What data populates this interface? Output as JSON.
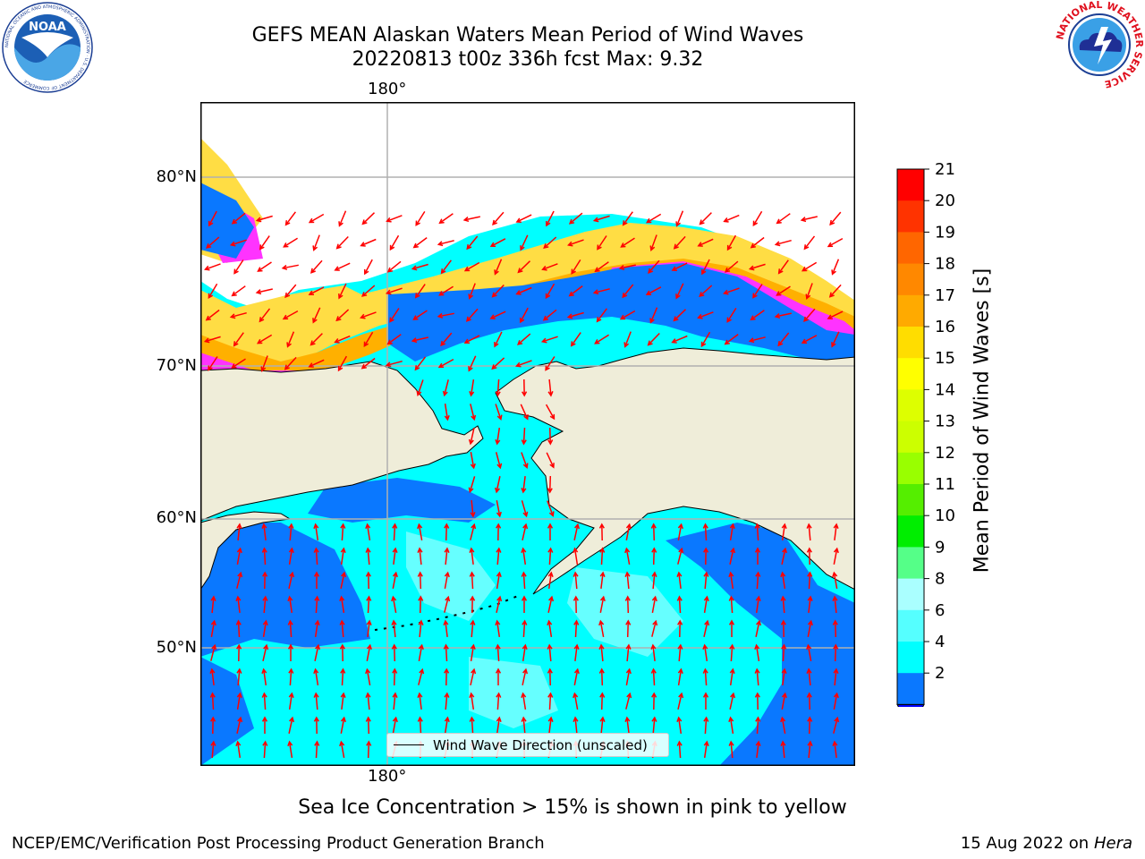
{
  "title": {
    "line1": "GEFS MEAN Alaskan Waters Mean Period of Wind Waves",
    "line2": "20220813 t00z 336h fcst   Max: 9.32"
  },
  "logos": {
    "left": {
      "name": "noaa-logo",
      "text": "NOAA",
      "ring_text": "NATIONAL OCEANIC AND ATMOSPHERIC ADMINISTRATION · U.S. DEPARTMENT OF COMMERCE"
    },
    "right": {
      "name": "nws-logo",
      "ring_text": "NATIONAL WEATHER SERVICE"
    }
  },
  "map": {
    "lon_labels": {
      "top": "180°",
      "bottom": "180°"
    },
    "lat_labels": [
      "80°N",
      "70°N",
      "60°N",
      "50°N"
    ],
    "colors": {
      "land": "#efedd9",
      "wave_low": "#0a78ff",
      "wave_main": "#00ffff",
      "wave_light": "#66ffff",
      "ice_pink": "#ff33ff",
      "ice_orange": "#ffb000",
      "ice_yellow": "#ffdd44",
      "arrow": "#ff0000",
      "grid": "#b0b0b0"
    },
    "legend_label": "Wind Wave Direction (unscaled)"
  },
  "colorbar": {
    "label": "Mean Period of Wind Waves [s]",
    "ticks": [
      "21",
      "20",
      "19",
      "18",
      "17",
      "16",
      "15",
      "14",
      "13",
      "12",
      "11",
      "10",
      "9",
      "8",
      "6",
      "4",
      "2"
    ],
    "colors": [
      "#ff0000",
      "#ff3300",
      "#ff6600",
      "#ff8800",
      "#ffaa00",
      "#ffdd00",
      "#ffff00",
      "#ddff00",
      "#ccff00",
      "#99ff00",
      "#55ee00",
      "#00ee00",
      "#55ff88",
      "#aaffff",
      "#55ffff",
      "#00ffff",
      "#0a78ff"
    ],
    "under_color": "#0000ff"
  },
  "notes": {
    "sea_ice": "Sea Ice Concentration > 15% is shown in pink to yellow",
    "footer_left": "NCEP/EMC/Verification Post Processing Product Generation Branch",
    "footer_date": "15 Aug 2022 on",
    "footer_host": "Hera"
  }
}
